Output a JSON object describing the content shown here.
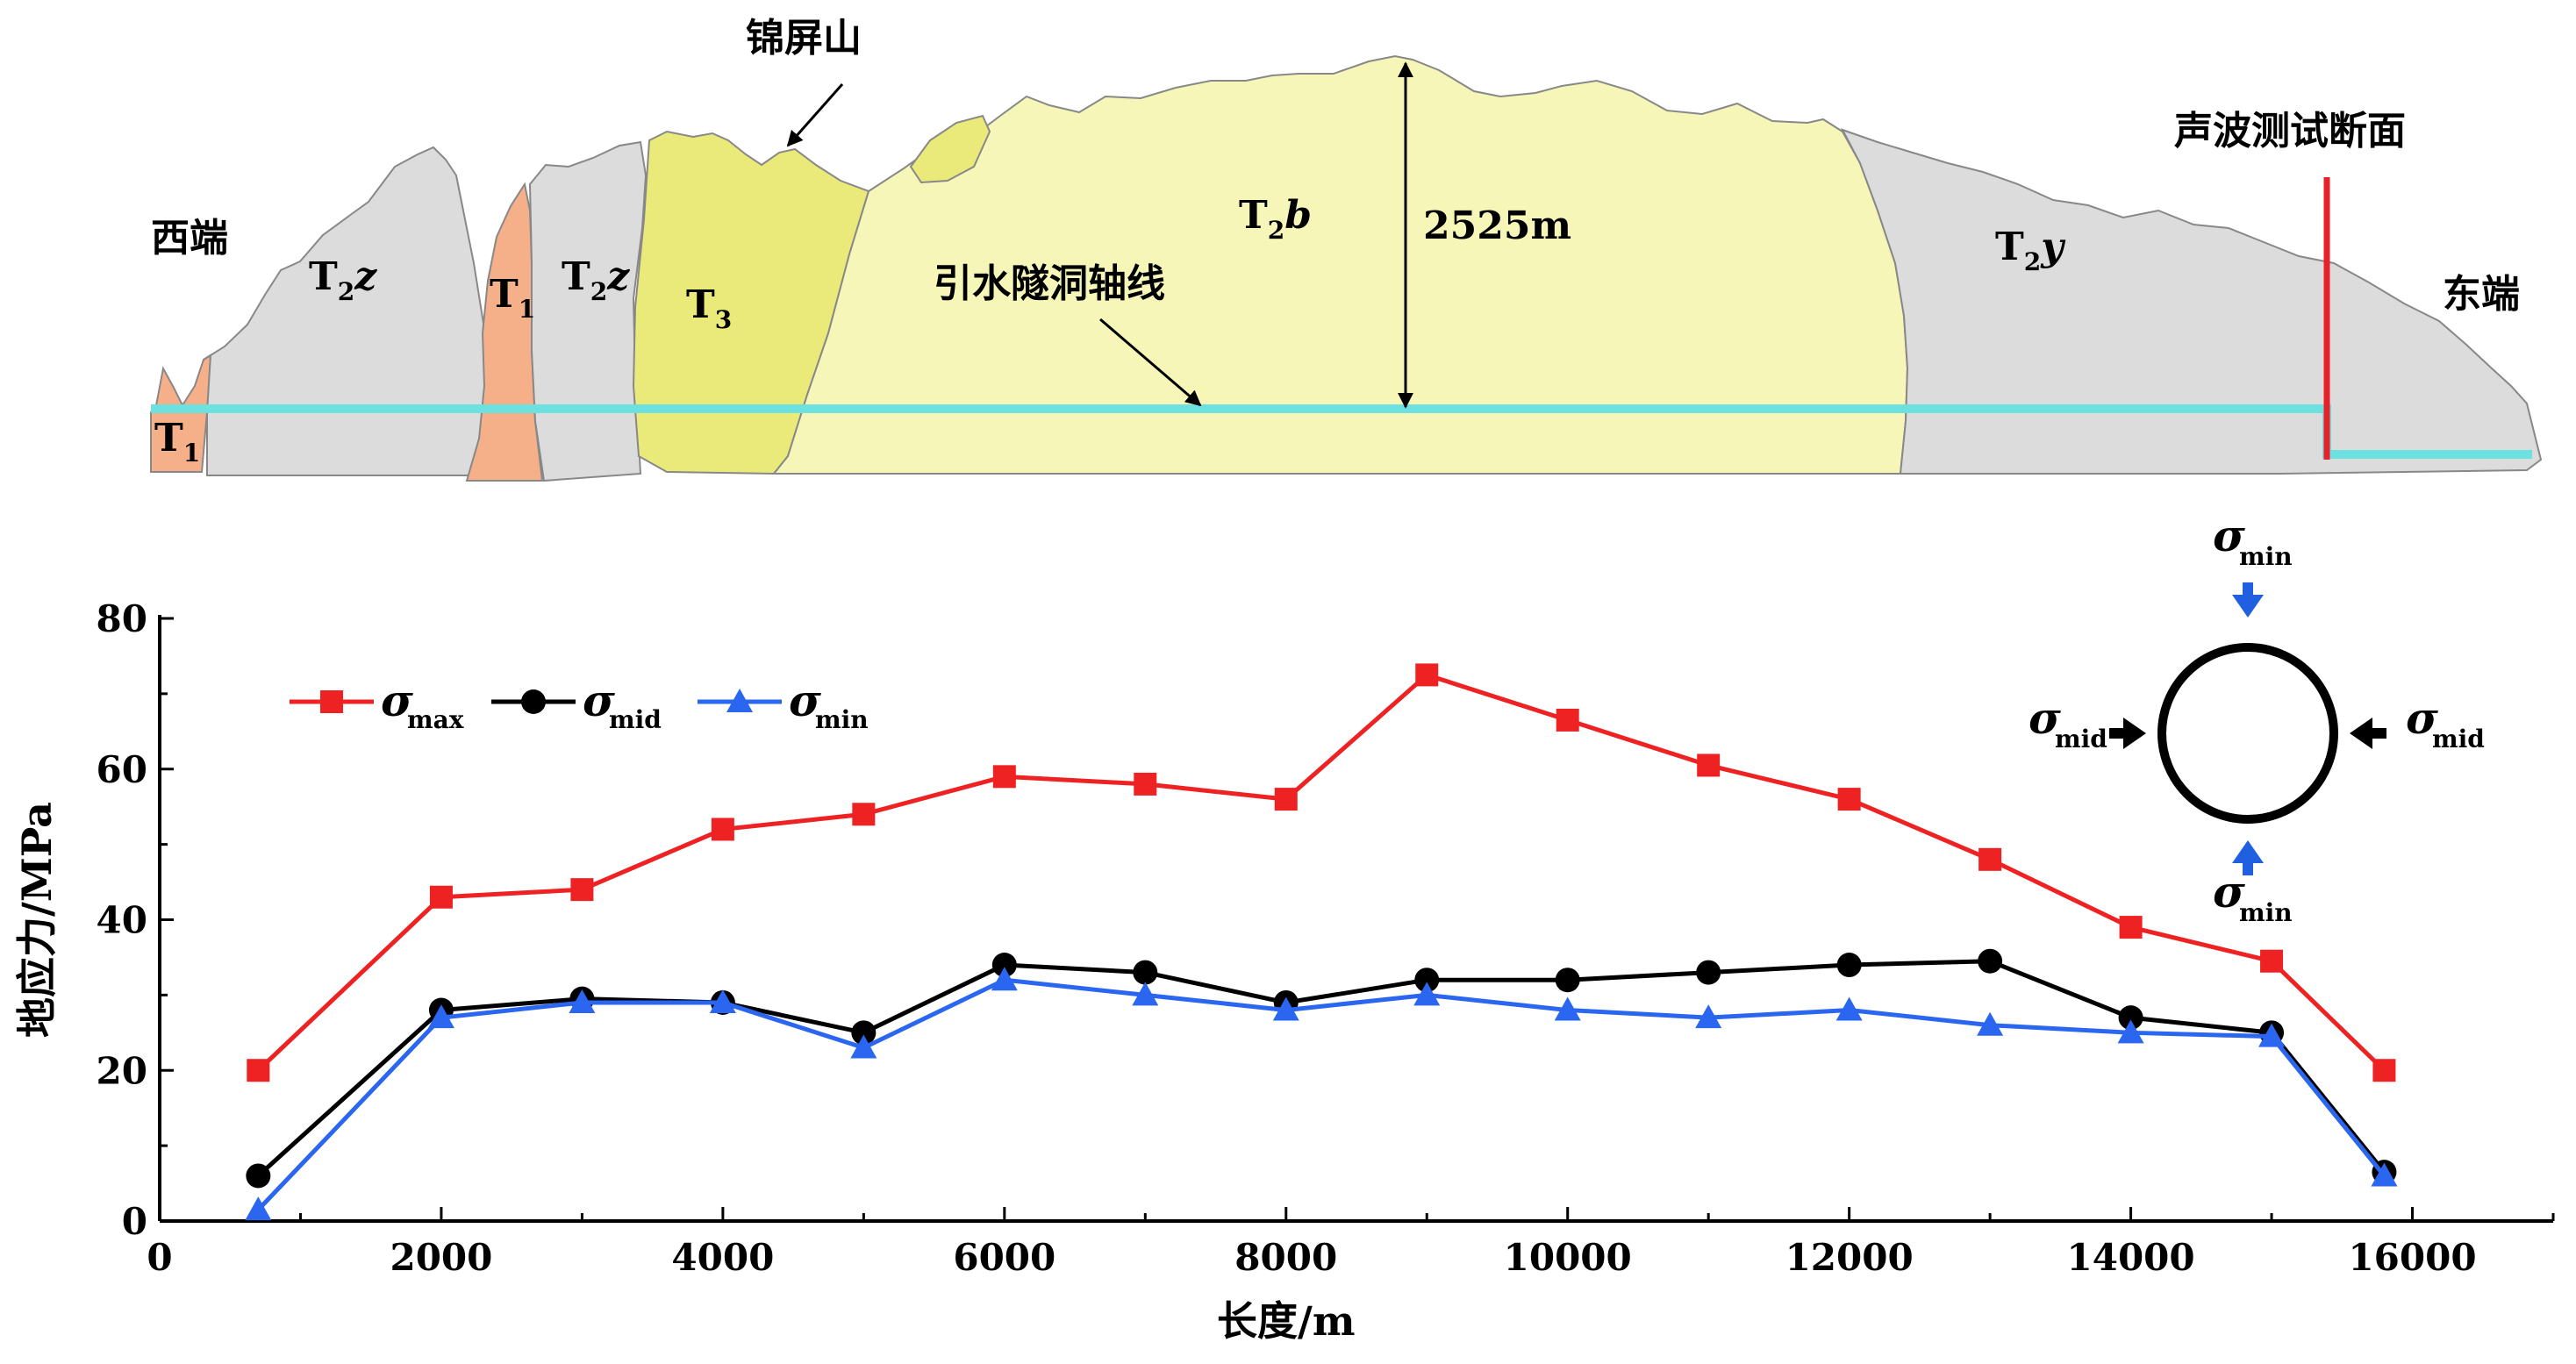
{
  "profile": {
    "west_label": "西端",
    "east_label": "东端",
    "mountain_label": "锦屏山",
    "tunnel_label": "引水隧洞轴线",
    "section_label": "声波测试断面",
    "depth_label": "2525m",
    "strata": [
      {
        "base": "T",
        "sub": "2",
        "suffix": "z"
      },
      {
        "base": "T",
        "sub": "1",
        "suffix": ""
      },
      {
        "base": "T",
        "sub": "2",
        "suffix": "z"
      },
      {
        "base": "T",
        "sub": "3",
        "suffix": ""
      },
      {
        "base": "T",
        "sub": "2",
        "suffix": "b"
      },
      {
        "base": "T",
        "sub": "2",
        "suffix": "y"
      },
      {
        "base": "T",
        "sub": "1",
        "suffix": ""
      }
    ],
    "colors": {
      "gray": "#dcdcdc",
      "orange": "#f5b08a",
      "yellow_dark": "#eaea7a",
      "yellow_light": "#f6f6b8",
      "tunnel": "#6de0e0",
      "section": "#e8202a"
    }
  },
  "stress_diagram": {
    "top": {
      "sym": "σ",
      "sub": "min"
    },
    "bottom": {
      "sym": "σ",
      "sub": "min"
    },
    "left": {
      "sym": "σ",
      "sub": "mid"
    },
    "right": {
      "sym": "σ",
      "sub": "mid"
    },
    "arrow_color": "#1f5fe0"
  },
  "chart_data": {
    "type": "line",
    "xlabel": "长度/m",
    "ylabel": "地应力/MPa",
    "xlim": [
      0,
      17000
    ],
    "ylim": [
      0,
      80
    ],
    "xticks": [
      0,
      2000,
      4000,
      6000,
      8000,
      10000,
      12000,
      14000,
      16000
    ],
    "yticks": [
      0,
      20,
      40,
      60,
      80
    ],
    "grid": false,
    "legend_position": "top-left",
    "series": [
      {
        "name": "σ",
        "sub": "max",
        "color": "#ee2222",
        "marker": "square",
        "x": [
          700,
          2000,
          3000,
          4000,
          5000,
          6000,
          7000,
          8000,
          9000,
          10000,
          11000,
          12000,
          13000,
          14000,
          15000,
          15800
        ],
        "y": [
          20,
          43,
          44,
          52,
          54,
          59,
          58,
          56,
          72.5,
          66.5,
          60.5,
          56,
          48,
          39,
          34.5,
          20
        ]
      },
      {
        "name": "σ",
        "sub": "mid",
        "color": "#000000",
        "marker": "circle",
        "x": [
          700,
          2000,
          3000,
          4000,
          5000,
          6000,
          7000,
          8000,
          9000,
          10000,
          11000,
          12000,
          13000,
          14000,
          15000,
          15800
        ],
        "y": [
          6,
          28,
          29.5,
          29,
          25,
          34,
          33,
          29,
          32,
          32,
          33,
          34,
          34.5,
          27,
          25,
          6.5
        ]
      },
      {
        "name": "σ",
        "sub": "min",
        "color": "#2a66f0",
        "marker": "triangle",
        "x": [
          700,
          2000,
          3000,
          4000,
          5000,
          6000,
          7000,
          8000,
          9000,
          10000,
          11000,
          12000,
          13000,
          14000,
          15000,
          15800
        ],
        "y": [
          1.5,
          27,
          29,
          29,
          23,
          32,
          30,
          28,
          30,
          28,
          27,
          28,
          26,
          25,
          24.5,
          6
        ]
      }
    ]
  }
}
